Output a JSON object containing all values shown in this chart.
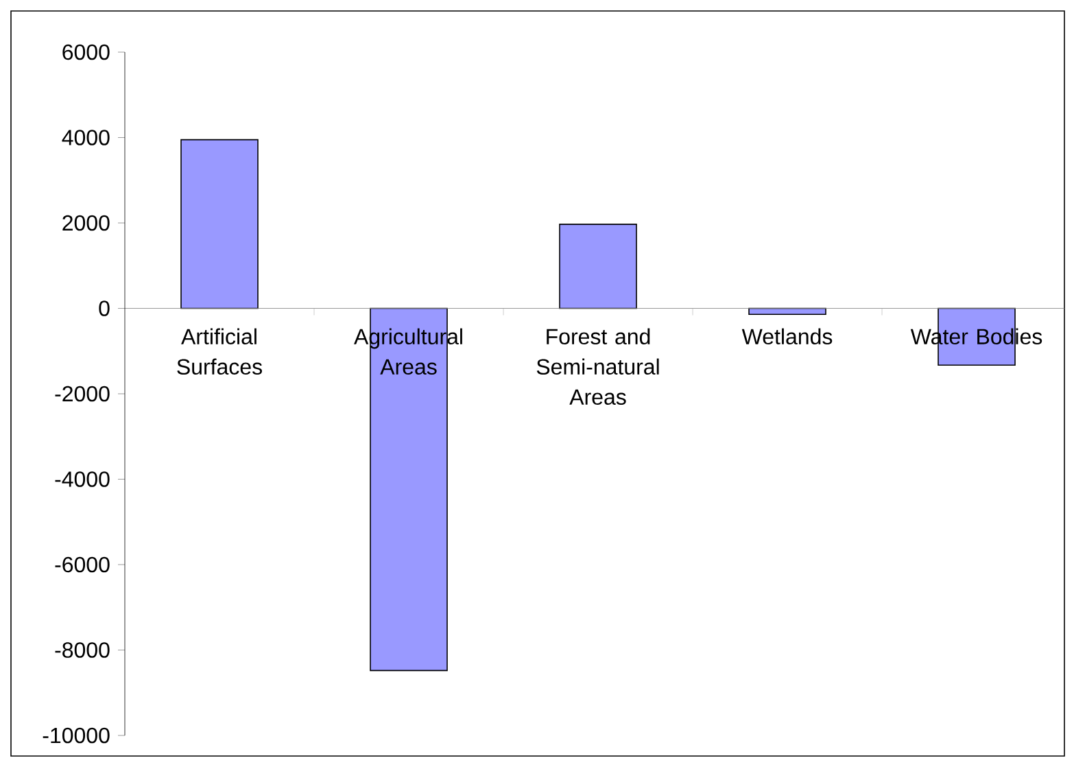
{
  "chart_data": {
    "type": "bar",
    "categories": [
      "Artificial Surfaces",
      "Agricultural Areas",
      "Forest and Semi-natural Areas",
      "Wetlands",
      "Water Bodies"
    ],
    "values": [
      3950,
      -8480,
      1970,
      -140,
      -1330
    ],
    "color": "#9999ff",
    "ylim": [
      -10000,
      6000
    ],
    "yticks": [
      -10000,
      -8000,
      -6000,
      -4000,
      -2000,
      0,
      2000,
      4000,
      6000
    ]
  }
}
